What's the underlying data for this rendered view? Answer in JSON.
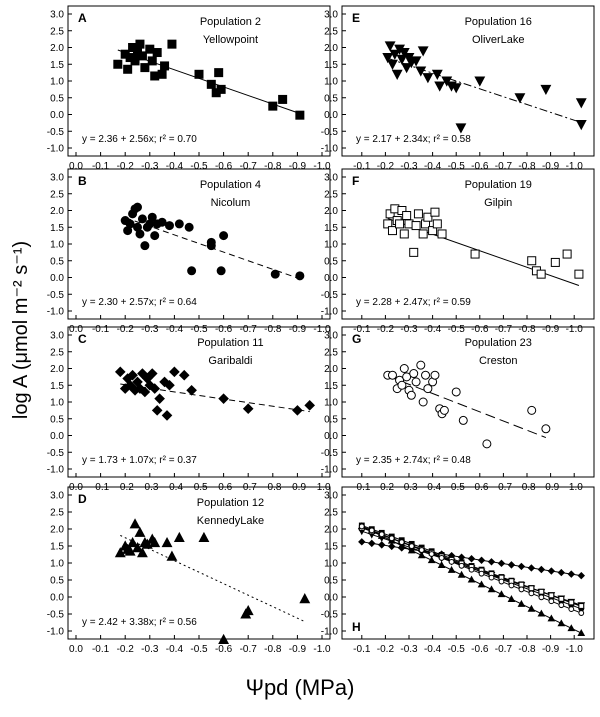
{
  "figure": {
    "ylabel": "log A (μmol m⁻² s⁻¹)",
    "xlabel": "Ψpd (MPa)"
  },
  "chart_data": [
    {
      "type": "scatter",
      "panel": "A",
      "population": "Population 2",
      "site": "Yellowpoint",
      "marker": "square-filled",
      "fit_style": "solid",
      "intercept": 2.36,
      "slope": 2.56,
      "equation": "y = 2.36 + 2.56x; r² = 0.70",
      "xlim": [
        0.0,
        -1.0
      ],
      "ylim": [
        -1.0,
        3.0
      ],
      "xticks": [
        "0.0",
        "-0.1",
        "-0.2",
        "-0.3",
        "-0.4",
        "-0.5",
        "-0.6",
        "-0.7",
        "-0.8",
        "-0.9",
        "-1.0"
      ],
      "yticks": [
        "3.0",
        "2.5",
        "2.0",
        "1.5",
        "1.0",
        "0.5",
        "0.0",
        "-0.5",
        "-1.0"
      ],
      "points": [
        [
          -0.17,
          1.5
        ],
        [
          -0.2,
          1.8
        ],
        [
          -0.21,
          1.35
        ],
        [
          -0.22,
          1.7
        ],
        [
          -0.23,
          2.0
        ],
        [
          -0.24,
          1.6
        ],
        [
          -0.25,
          1.85
        ],
        [
          -0.26,
          2.1
        ],
        [
          -0.27,
          1.75
        ],
        [
          -0.28,
          1.4
        ],
        [
          -0.3,
          1.95
        ],
        [
          -0.31,
          1.6
        ],
        [
          -0.32,
          1.15
        ],
        [
          -0.33,
          1.85
        ],
        [
          -0.35,
          1.2
        ],
        [
          -0.36,
          1.45
        ],
        [
          -0.39,
          2.1
        ],
        [
          -0.5,
          1.2
        ],
        [
          -0.55,
          0.9
        ],
        [
          -0.57,
          0.65
        ],
        [
          -0.58,
          1.25
        ],
        [
          -0.59,
          0.75
        ],
        [
          -0.8,
          0.25
        ],
        [
          -0.84,
          0.45
        ],
        [
          -0.91,
          -0.02
        ]
      ]
    },
    {
      "type": "scatter",
      "panel": "B",
      "population": "Population 4",
      "site": "Nicolum",
      "marker": "circle-filled",
      "fit_style": "dashed",
      "intercept": 2.3,
      "slope": 2.57,
      "equation": "y = 2.30 + 2.57x; r² = 0.64",
      "xlim": [
        0.0,
        -1.0
      ],
      "ylim": [
        -1.0,
        3.0
      ],
      "xticks": [
        "0.0",
        "-0.1",
        "-0.2",
        "-0.3",
        "-0.4",
        "-0.5",
        "-0.6",
        "-0.7",
        "-0.8",
        "-0.9",
        "-1.0"
      ],
      "yticks": [
        "3.0",
        "2.5",
        "2.0",
        "1.5",
        "1.0",
        "0.5",
        "0.0",
        "-0.5",
        "-1.0"
      ],
      "points": [
        [
          -0.2,
          1.7
        ],
        [
          -0.21,
          1.4
        ],
        [
          -0.22,
          1.6
        ],
        [
          -0.23,
          1.9
        ],
        [
          -0.24,
          2.05
        ],
        [
          -0.25,
          1.5
        ],
        [
          -0.25,
          2.1
        ],
        [
          -0.26,
          1.3
        ],
        [
          -0.27,
          1.75
        ],
        [
          -0.28,
          0.95
        ],
        [
          -0.29,
          1.5
        ],
        [
          -0.3,
          1.6
        ],
        [
          -0.31,
          1.8
        ],
        [
          -0.32,
          1.25
        ],
        [
          -0.33,
          1.6
        ],
        [
          -0.35,
          1.65
        ],
        [
          -0.38,
          1.55
        ],
        [
          -0.42,
          1.6
        ],
        [
          -0.46,
          1.5
        ],
        [
          -0.47,
          0.2
        ],
        [
          -0.55,
          0.95
        ],
        [
          -0.55,
          1.05
        ],
        [
          -0.59,
          0.2
        ],
        [
          -0.6,
          1.25
        ],
        [
          -0.81,
          0.1
        ],
        [
          -0.91,
          0.05
        ]
      ]
    },
    {
      "type": "scatter",
      "panel": "C",
      "population": "Population 11",
      "site": "Garibaldi",
      "marker": "diamond-filled",
      "fit_style": "dashed",
      "intercept": 1.73,
      "slope": 1.07,
      "equation": "y = 1.73 + 1.07x; r² = 0.37",
      "xlim": [
        0.0,
        -1.0
      ],
      "ylim": [
        -1.0,
        3.0
      ],
      "xticks": [
        "0.0",
        "-0.1",
        "-0.2",
        "-0.3",
        "-0.4",
        "-0.5",
        "-0.6",
        "-0.7",
        "-0.8",
        "-0.9",
        "-1.0"
      ],
      "yticks": [
        "3.0",
        "2.5",
        "2.0",
        "1.5",
        "1.0",
        "0.5",
        "0.0",
        "-0.5",
        "-1.0"
      ],
      "points": [
        [
          -0.18,
          1.9
        ],
        [
          -0.2,
          1.4
        ],
        [
          -0.21,
          1.7
        ],
        [
          -0.22,
          1.5
        ],
        [
          -0.23,
          1.8
        ],
        [
          -0.24,
          1.35
        ],
        [
          -0.25,
          1.6
        ],
        [
          -0.26,
          1.4
        ],
        [
          -0.27,
          1.85
        ],
        [
          -0.28,
          1.3
        ],
        [
          -0.29,
          1.7
        ],
        [
          -0.3,
          1.5
        ],
        [
          -0.31,
          1.85
        ],
        [
          -0.32,
          1.4
        ],
        [
          -0.33,
          0.75
        ],
        [
          -0.34,
          1.1
        ],
        [
          -0.36,
          1.6
        ],
        [
          -0.37,
          0.6
        ],
        [
          -0.38,
          1.5
        ],
        [
          -0.4,
          1.9
        ],
        [
          -0.44,
          1.8
        ],
        [
          -0.47,
          1.35
        ],
        [
          -0.6,
          1.1
        ],
        [
          -0.7,
          0.8
        ],
        [
          -0.9,
          0.75
        ],
        [
          -0.95,
          0.9
        ]
      ]
    },
    {
      "type": "scatter",
      "panel": "D",
      "population": "Population 12",
      "site": "KennedyLake",
      "marker": "triangle-up-filled",
      "fit_style": "dotted",
      "intercept": 2.42,
      "slope": 3.38,
      "equation": "y = 2.42 + 3.38x; r² = 0.56",
      "xlim": [
        0.0,
        -1.0
      ],
      "ylim": [
        -1.0,
        3.0
      ],
      "xticks": [
        "0.0",
        "-0.1",
        "-0.2",
        "-0.3",
        "-0.4",
        "-0.5",
        "-0.6",
        "-0.7",
        "-0.8",
        "-0.9",
        "-1.0"
      ],
      "yticks": [
        "3.0",
        "2.5",
        "2.0",
        "1.5",
        "1.0",
        "0.5",
        "0.0",
        "-0.5",
        "-1.0"
      ],
      "points": [
        [
          -0.18,
          1.3
        ],
        [
          -0.2,
          1.5
        ],
        [
          -0.21,
          1.4
        ],
        [
          -0.22,
          1.35
        ],
        [
          -0.23,
          1.6
        ],
        [
          -0.24,
          2.15
        ],
        [
          -0.25,
          1.45
        ],
        [
          -0.26,
          1.9
        ],
        [
          -0.27,
          1.3
        ],
        [
          -0.28,
          1.6
        ],
        [
          -0.29,
          1.55
        ],
        [
          -0.31,
          1.7
        ],
        [
          -0.32,
          1.6
        ],
        [
          -0.37,
          1.6
        ],
        [
          -0.39,
          1.2
        ],
        [
          -0.42,
          1.75
        ],
        [
          -0.52,
          1.75
        ],
        [
          -0.6,
          -1.25
        ],
        [
          -0.69,
          -0.5
        ],
        [
          -0.7,
          -0.4
        ],
        [
          -0.93,
          -0.05
        ]
      ]
    },
    {
      "type": "scatter",
      "panel": "E",
      "population": "Population 16",
      "site": "OliverLake",
      "marker": "triangle-down-filled",
      "fit_style": "dashdot",
      "intercept": 2.17,
      "slope": 2.34,
      "equation": "y = 2.17 + 2.34x; r² = 0.58",
      "xlim": [
        -0.05,
        -1.05
      ],
      "ylim": [
        -1.0,
        3.0
      ],
      "xticks": [
        "-0.1",
        "-0.2",
        "-0.3",
        "-0.4",
        "-0.5",
        "-0.6",
        "-0.7",
        "-0.8",
        "-0.9",
        "-1.0"
      ],
      "yticks": [
        "3.0",
        "2.5",
        "2.0",
        "1.5",
        "1.0",
        "0.5",
        "0.0",
        "-0.5",
        "-1.0"
      ],
      "points": [
        [
          -0.21,
          1.7
        ],
        [
          -0.22,
          2.05
        ],
        [
          -0.23,
          1.5
        ],
        [
          -0.24,
          1.8
        ],
        [
          -0.25,
          1.2
        ],
        [
          -0.26,
          1.95
        ],
        [
          -0.27,
          1.65
        ],
        [
          -0.28,
          1.85
        ],
        [
          -0.29,
          1.4
        ],
        [
          -0.3,
          1.7
        ],
        [
          -0.31,
          1.55
        ],
        [
          -0.33,
          1.6
        ],
        [
          -0.35,
          1.3
        ],
        [
          -0.36,
          1.9
        ],
        [
          -0.38,
          1.1
        ],
        [
          -0.42,
          1.2
        ],
        [
          -0.43,
          0.85
        ],
        [
          -0.46,
          1.0
        ],
        [
          -0.48,
          0.85
        ],
        [
          -0.5,
          0.8
        ],
        [
          -0.52,
          -0.4
        ],
        [
          -0.6,
          1.0
        ],
        [
          -0.77,
          0.5
        ],
        [
          -0.88,
          0.75
        ],
        [
          -1.03,
          0.35
        ],
        [
          -1.03,
          -0.3
        ]
      ]
    },
    {
      "type": "scatter",
      "panel": "F",
      "population": "Population 19",
      "site": "Gilpin",
      "marker": "square-open",
      "fit_style": "solid",
      "intercept": 2.28,
      "slope": 2.47,
      "equation": "y = 2.28 + 2.47x; r² = 0.59",
      "xlim": [
        -0.05,
        -1.05
      ],
      "ylim": [
        -1.0,
        3.0
      ],
      "xticks": [
        "-0.1",
        "-0.2",
        "-0.3",
        "-0.4",
        "-0.5",
        "-0.6",
        "-0.7",
        "-0.8",
        "-0.9",
        "-1.0"
      ],
      "yticks": [
        "3.0",
        "2.5",
        "2.0",
        "1.5",
        "1.0",
        "0.5",
        "0.0",
        "-0.5",
        "-1.0"
      ],
      "points": [
        [
          -0.21,
          1.6
        ],
        [
          -0.22,
          1.9
        ],
        [
          -0.23,
          1.4
        ],
        [
          -0.24,
          2.05
        ],
        [
          -0.25,
          1.7
        ],
        [
          -0.26,
          1.6
        ],
        [
          -0.27,
          2.0
        ],
        [
          -0.28,
          1.3
        ],
        [
          -0.29,
          1.85
        ],
        [
          -0.3,
          1.6
        ],
        [
          -0.32,
          0.75
        ],
        [
          -0.33,
          1.55
        ],
        [
          -0.34,
          1.9
        ],
        [
          -0.36,
          1.3
        ],
        [
          -0.37,
          1.6
        ],
        [
          -0.38,
          1.8
        ],
        [
          -0.4,
          1.4
        ],
        [
          -0.41,
          1.95
        ],
        [
          -0.42,
          1.6
        ],
        [
          -0.44,
          1.3
        ],
        [
          -0.58,
          0.7
        ],
        [
          -0.82,
          0.5
        ],
        [
          -0.84,
          0.2
        ],
        [
          -0.86,
          0.1
        ],
        [
          -0.92,
          0.45
        ],
        [
          -0.97,
          0.7
        ],
        [
          -1.02,
          0.1
        ]
      ]
    },
    {
      "type": "scatter",
      "panel": "G",
      "population": "Population 23",
      "site": "Creston",
      "marker": "circle-open",
      "fit_style": "longdash",
      "intercept": 2.35,
      "slope": 2.74,
      "equation": "y = 2.35 + 2.74x; r² = 0.48",
      "xlim": [
        -0.05,
        -1.05
      ],
      "ylim": [
        -1.0,
        3.0
      ],
      "xticks": [
        "-0.1",
        "-0.2",
        "-0.3",
        "-0.4",
        "-0.5",
        "-0.6",
        "-0.7",
        "-0.8",
        "-0.9",
        "-1.0"
      ],
      "yticks": [
        "3.0",
        "2.5",
        "2.0",
        "1.5",
        "1.0",
        "0.5",
        "0.0",
        "-0.5",
        "-1.0"
      ],
      "points": [
        [
          -0.21,
          1.8
        ],
        [
          -0.23,
          1.8
        ],
        [
          -0.25,
          1.4
        ],
        [
          -0.26,
          1.65
        ],
        [
          -0.27,
          1.5
        ],
        [
          -0.28,
          2.0
        ],
        [
          -0.29,
          1.75
        ],
        [
          -0.3,
          1.35
        ],
        [
          -0.31,
          1.2
        ],
        [
          -0.32,
          1.85
        ],
        [
          -0.33,
          1.6
        ],
        [
          -0.35,
          2.1
        ],
        [
          -0.36,
          1.0
        ],
        [
          -0.37,
          1.8
        ],
        [
          -0.38,
          1.4
        ],
        [
          -0.4,
          1.6
        ],
        [
          -0.41,
          1.8
        ],
        [
          -0.43,
          0.8
        ],
        [
          -0.44,
          0.65
        ],
        [
          -0.45,
          0.75
        ],
        [
          -0.5,
          1.3
        ],
        [
          -0.53,
          0.45
        ],
        [
          -0.63,
          -0.25
        ],
        [
          -0.82,
          0.75
        ],
        [
          -0.88,
          0.2
        ]
      ]
    },
    {
      "type": "line",
      "panel": "H",
      "population": "",
      "site": "",
      "xlim": [
        -0.05,
        -1.05
      ],
      "ylim": [
        -1.0,
        3.0
      ],
      "xticks": [
        "-0.1",
        "-0.2",
        "-0.3",
        "-0.4",
        "-0.5",
        "-0.6",
        "-0.7",
        "-0.8",
        "-0.9",
        "-1.0"
      ],
      "yticks": [
        "3.0",
        "2.5",
        "2.0",
        "1.5",
        "1.0",
        "0.5",
        "0.0",
        "-0.5",
        "-1.0"
      ],
      "x_range": [
        -0.1,
        -1.03
      ],
      "series": [
        {
          "name": "Population 2",
          "intercept": 2.36,
          "slope": 2.56,
          "marker": "square-filled"
        },
        {
          "name": "Population 4",
          "intercept": 2.3,
          "slope": 2.57,
          "marker": "circle-filled"
        },
        {
          "name": "Population 11",
          "intercept": 1.73,
          "slope": 1.07,
          "marker": "diamond-filled"
        },
        {
          "name": "Population 12",
          "intercept": 2.42,
          "slope": 3.38,
          "marker": "triangle-up-filled"
        },
        {
          "name": "Population 16",
          "intercept": 2.17,
          "slope": 2.34,
          "marker": "triangle-down-filled"
        },
        {
          "name": "Population 19",
          "intercept": 2.28,
          "slope": 2.47,
          "marker": "square-open"
        },
        {
          "name": "Population 23",
          "intercept": 2.35,
          "slope": 2.74,
          "marker": "circle-open"
        }
      ]
    }
  ]
}
